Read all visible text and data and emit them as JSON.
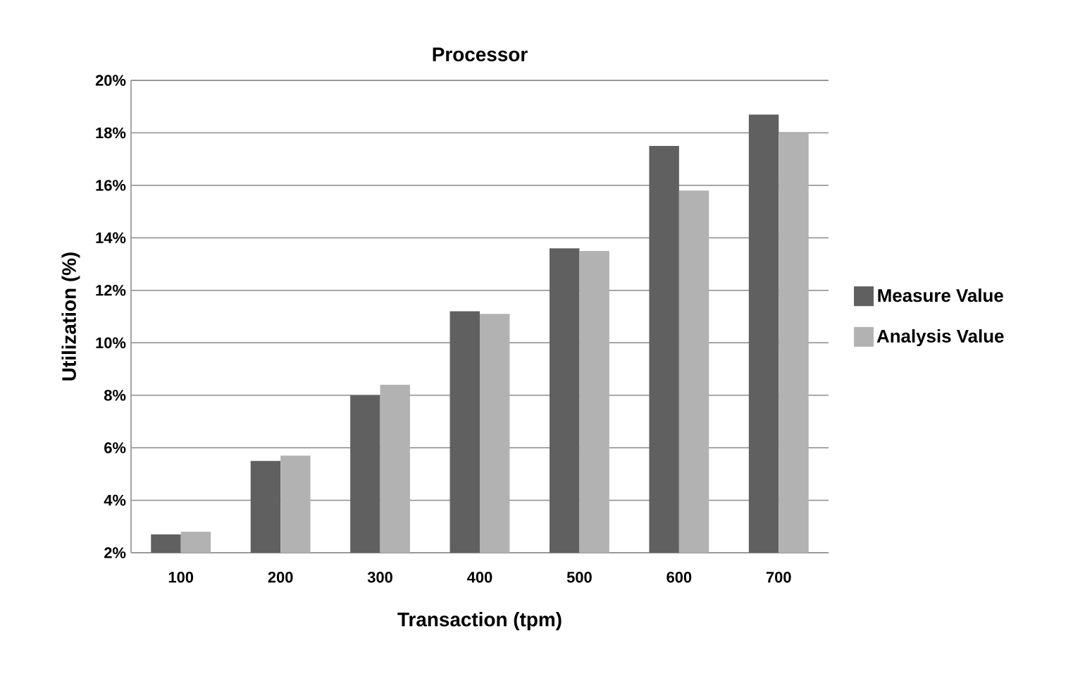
{
  "chart_data": {
    "type": "bar",
    "title": "Processor",
    "xlabel": "Transaction (tpm)",
    "ylabel": "Utilization (%)",
    "categories": [
      "100",
      "200",
      "300",
      "400",
      "500",
      "600",
      "700"
    ],
    "series": [
      {
        "name": "Measure Value",
        "color": "#606060",
        "values": [
          2.7,
          5.5,
          8.0,
          11.2,
          13.6,
          17.5,
          18.7
        ]
      },
      {
        "name": "Analysis Value",
        "color": "#b2b2b2",
        "values": [
          2.8,
          5.7,
          8.4,
          11.1,
          13.5,
          15.8,
          18.0
        ]
      }
    ],
    "ylim": [
      2,
      20
    ],
    "yticks": [
      {
        "value": 2,
        "label": "2%"
      },
      {
        "value": 4,
        "label": "4%"
      },
      {
        "value": 6,
        "label": "6%"
      },
      {
        "value": 8,
        "label": "8%"
      },
      {
        "value": 10,
        "label": "10%"
      },
      {
        "value": 12,
        "label": "12%"
      },
      {
        "value": 14,
        "label": "14%"
      },
      {
        "value": 16,
        "label": "16%"
      },
      {
        "value": 18,
        "label": "18%"
      },
      {
        "value": 20,
        "label": "20%"
      }
    ],
    "grid": "y",
    "legend": "right"
  }
}
